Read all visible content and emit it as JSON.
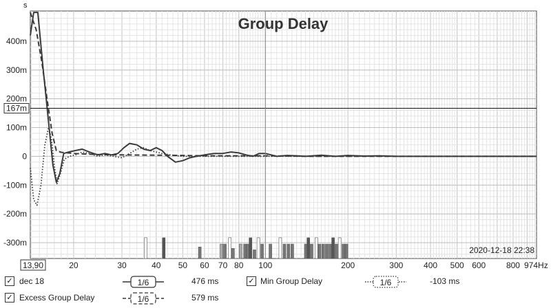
{
  "chart_data": {
    "type": "line",
    "title": "Group Delay",
    "y_unit_label": "s",
    "x_scale": "log",
    "x_range_hz": [
      13.9,
      974
    ],
    "y_range": [
      -0.355,
      0.505
    ],
    "x_ticks": [
      {
        "v": 13.9,
        "label": "13,90",
        "boxed": true
      },
      {
        "v": 20,
        "label": "20"
      },
      {
        "v": 30,
        "label": "30"
      },
      {
        "v": 40,
        "label": "40"
      },
      {
        "v": 50,
        "label": "50"
      },
      {
        "v": 60,
        "label": "60"
      },
      {
        "v": 70,
        "label": "70"
      },
      {
        "v": 80,
        "label": "80"
      },
      {
        "v": 100,
        "label": "100"
      },
      {
        "v": 200,
        "label": "200"
      },
      {
        "v": 300,
        "label": "300"
      },
      {
        "v": 400,
        "label": "400"
      },
      {
        "v": 500,
        "label": "500"
      },
      {
        "v": 600,
        "label": "600"
      },
      {
        "v": 800,
        "label": "800"
      },
      {
        "v": 974,
        "label": "974Hz"
      }
    ],
    "y_ticks": [
      {
        "v": 0.4,
        "label": "400m"
      },
      {
        "v": 0.3,
        "label": "300m"
      },
      {
        "v": 0.2,
        "label": "200m"
      },
      {
        "v": 0.1,
        "label": "100m"
      },
      {
        "v": 0,
        "label": "0"
      },
      {
        "v": -0.1,
        "label": "-100m"
      },
      {
        "v": -0.2,
        "label": "-200m"
      },
      {
        "v": -0.3,
        "label": "-300m"
      }
    ],
    "cursor": {
      "x_hz": 100,
      "y": 0.167,
      "y_label": "167m"
    },
    "timestamp": "2020-12-18 22:38",
    "series": [
      {
        "name": "dec 18",
        "style": "solid",
        "color": "#3a3a3a",
        "x": [
          13.9,
          14.3,
          14.8,
          15.5,
          16.2,
          16.8,
          17.3,
          17.8,
          18.4,
          19.2,
          20.3,
          21.5,
          22.8,
          24.5,
          26,
          27.5,
          29,
          30.5,
          32,
          34,
          36,
          38,
          40,
          42,
          44,
          47,
          50,
          53,
          56,
          60,
          65,
          70,
          75,
          80,
          85,
          90,
          95,
          100,
          110,
          120,
          130,
          140,
          160,
          180,
          200,
          230,
          260,
          300,
          350,
          400,
          500,
          600,
          700,
          800,
          974
        ],
        "y": [
          0.42,
          0.5,
          0.5,
          0.3,
          0.12,
          -0.03,
          -0.09,
          -0.06,
          0.01,
          0.015,
          0.02,
          0.025,
          0.015,
          0.005,
          0.01,
          0.005,
          0.01,
          0.03,
          0.045,
          0.04,
          0.025,
          0.02,
          0.03,
          0.02,
          0.0,
          -0.02,
          -0.015,
          -0.005,
          0.0,
          0.005,
          0.01,
          0.01,
          0.015,
          0.012,
          0.005,
          0.0,
          0.01,
          0.01,
          0.0,
          0.003,
          0.002,
          0.0,
          0.004,
          0.0,
          0.003,
          0.001,
          0.002,
          0.0,
          0.0,
          0.0,
          0.0,
          0.0,
          0.0,
          0.0,
          0.0
        ]
      },
      {
        "name": "Excess Group Delay",
        "style": "dashed",
        "color": "#3a3a3a",
        "x": [
          13.9,
          14.6,
          15.3,
          16,
          16.7,
          17.3,
          18,
          19,
          20,
          22,
          25,
          30,
          40,
          50,
          60,
          80,
          100,
          150,
          200,
          300,
          500,
          974
        ],
        "y": [
          0.5,
          0.44,
          0.33,
          0.2,
          0.08,
          0.02,
          0.014,
          0.012,
          0.01,
          0.008,
          0.006,
          0.005,
          0.004,
          0.003,
          0.002,
          0.002,
          0.002,
          0.0,
          0.0,
          0.0,
          0.0,
          0.0
        ]
      },
      {
        "name": "Min Group Delay",
        "style": "dotted",
        "color": "#3a3a3a",
        "x": [
          13.9,
          14.3,
          14.7,
          15.2,
          15.7,
          16.2,
          16.6,
          17.0,
          17.4,
          17.9,
          18.5,
          19.3,
          20.3,
          21.5,
          22.8,
          24.5,
          26,
          28,
          30,
          32,
          34,
          36,
          38,
          40,
          42,
          45,
          50,
          60,
          80,
          100,
          200,
          500,
          974
        ],
        "y": [
          -0.04,
          -0.15,
          -0.17,
          -0.1,
          0.04,
          0.1,
          0.06,
          -0.03,
          -0.095,
          -0.06,
          -0.01,
          0.0,
          0.005,
          0.015,
          0.01,
          0.0,
          0.005,
          0.0,
          -0.005,
          0.01,
          0.025,
          0.03,
          0.02,
          0.015,
          0.01,
          0.005,
          0.0,
          0.0,
          0.0,
          0.0,
          0.0,
          0.0,
          0.0
        ]
      }
    ],
    "histogram": [
      {
        "x": 36.5,
        "h": 0.072,
        "fill": "#ffffff"
      },
      {
        "x": 42.5,
        "h": 0.072,
        "fill": "#555555"
      },
      {
        "x": 57.5,
        "h": 0.04,
        "fill": "#777777"
      },
      {
        "x": 69,
        "h": 0.05,
        "fill": "#aaaaaa"
      },
      {
        "x": 71,
        "h": 0.05,
        "fill": "#777777"
      },
      {
        "x": 74,
        "h": 0.072,
        "fill": "#ffffff"
      },
      {
        "x": 76,
        "h": 0.035,
        "fill": "#777777"
      },
      {
        "x": 81,
        "h": 0.05,
        "fill": "#aaaaaa"
      },
      {
        "x": 84,
        "h": 0.05,
        "fill": "#777777"
      },
      {
        "x": 86,
        "h": 0.05,
        "fill": "#777777"
      },
      {
        "x": 88,
        "h": 0.072,
        "fill": "#555555"
      },
      {
        "x": 91,
        "h": 0.03,
        "fill": "#777777"
      },
      {
        "x": 94,
        "h": 0.072,
        "fill": "#ffffff"
      },
      {
        "x": 97,
        "h": 0.05,
        "fill": "#777777"
      },
      {
        "x": 104,
        "h": 0.05,
        "fill": "#777777"
      },
      {
        "x": 113,
        "h": 0.072,
        "fill": "#ffffff"
      },
      {
        "x": 117,
        "h": 0.05,
        "fill": "#777777"
      },
      {
        "x": 121,
        "h": 0.05,
        "fill": "#777777"
      },
      {
        "x": 125,
        "h": 0.05,
        "fill": "#777777"
      },
      {
        "x": 140,
        "h": 0.05,
        "fill": "#777777"
      },
      {
        "x": 143,
        "h": 0.072,
        "fill": "#555555"
      },
      {
        "x": 147,
        "h": 0.05,
        "fill": "#777777"
      },
      {
        "x": 153,
        "h": 0.072,
        "fill": "#ffffff"
      },
      {
        "x": 157,
        "h": 0.05,
        "fill": "#777777"
      },
      {
        "x": 162,
        "h": 0.05,
        "fill": "#777777"
      },
      {
        "x": 167,
        "h": 0.05,
        "fill": "#777777"
      },
      {
        "x": 172,
        "h": 0.05,
        "fill": "#777777"
      },
      {
        "x": 176,
        "h": 0.072,
        "fill": "#555555"
      },
      {
        "x": 181,
        "h": 0.05,
        "fill": "#777777"
      },
      {
        "x": 186,
        "h": 0.072,
        "fill": "#ffffff"
      },
      {
        "x": 192,
        "h": 0.05,
        "fill": "#777777"
      },
      {
        "x": 197,
        "h": 0.05,
        "fill": "#777777"
      }
    ]
  },
  "legend": {
    "items": [
      {
        "name": "dec 18",
        "checked": true,
        "check_glyph": "✓",
        "smoothing": "1/6",
        "value": "476 ms",
        "style": "solid"
      },
      {
        "name": "Min Group Delay",
        "checked": true,
        "check_glyph": "✓",
        "smoothing": "1/6",
        "value": "-103 ms",
        "style": "dotted"
      },
      {
        "name": "Excess Group Delay",
        "checked": true,
        "check_glyph": "✓",
        "smoothing": "1/6",
        "value": "579 ms",
        "style": "dashed"
      }
    ]
  }
}
